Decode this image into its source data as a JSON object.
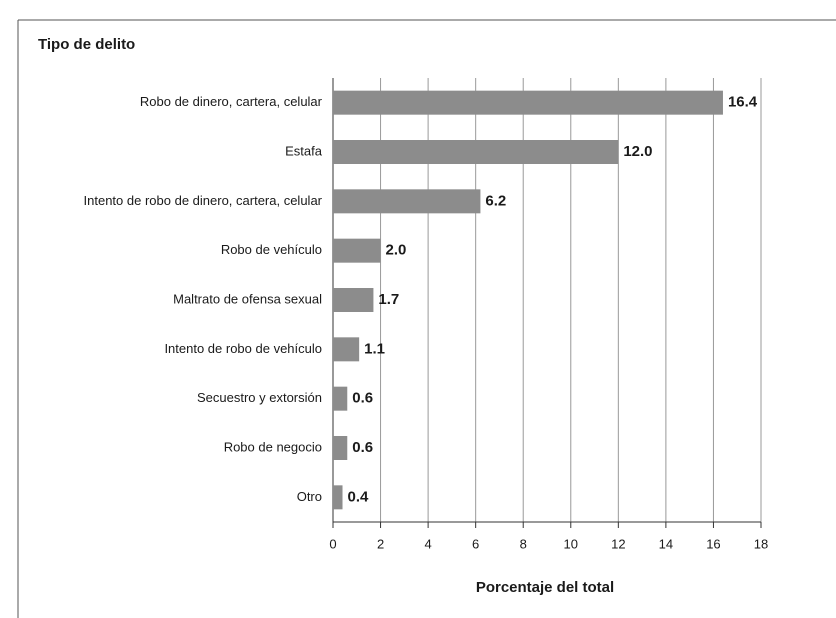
{
  "chart_data": {
    "type": "bar",
    "orientation": "horizontal",
    "title": "Tipo de delito",
    "xlabel": "Porcentaje del total",
    "categories": [
      "Robo de dinero, cartera, celular",
      "Estafa",
      "Intento de robo de dinero, cartera, celular",
      "Robo de vehículo",
      "Maltrato de ofensa sexual",
      "Intento de robo de vehículo",
      "Secuestro y extorsión",
      "Robo de negocio",
      "Otro"
    ],
    "values": [
      16.4,
      12.0,
      6.2,
      2.0,
      1.7,
      1.1,
      0.6,
      0.6,
      0.4
    ],
    "value_labels": [
      "16.4",
      "12.0",
      "6.2",
      "2.0",
      "1.7",
      "1.1",
      "0.6",
      "0.6",
      "0.4"
    ],
    "color": "#8c8c8c",
    "xlim": [
      0,
      18
    ],
    "xticks": [
      0,
      2,
      4,
      6,
      8,
      10,
      12,
      14,
      16,
      18
    ],
    "grid": true
  }
}
